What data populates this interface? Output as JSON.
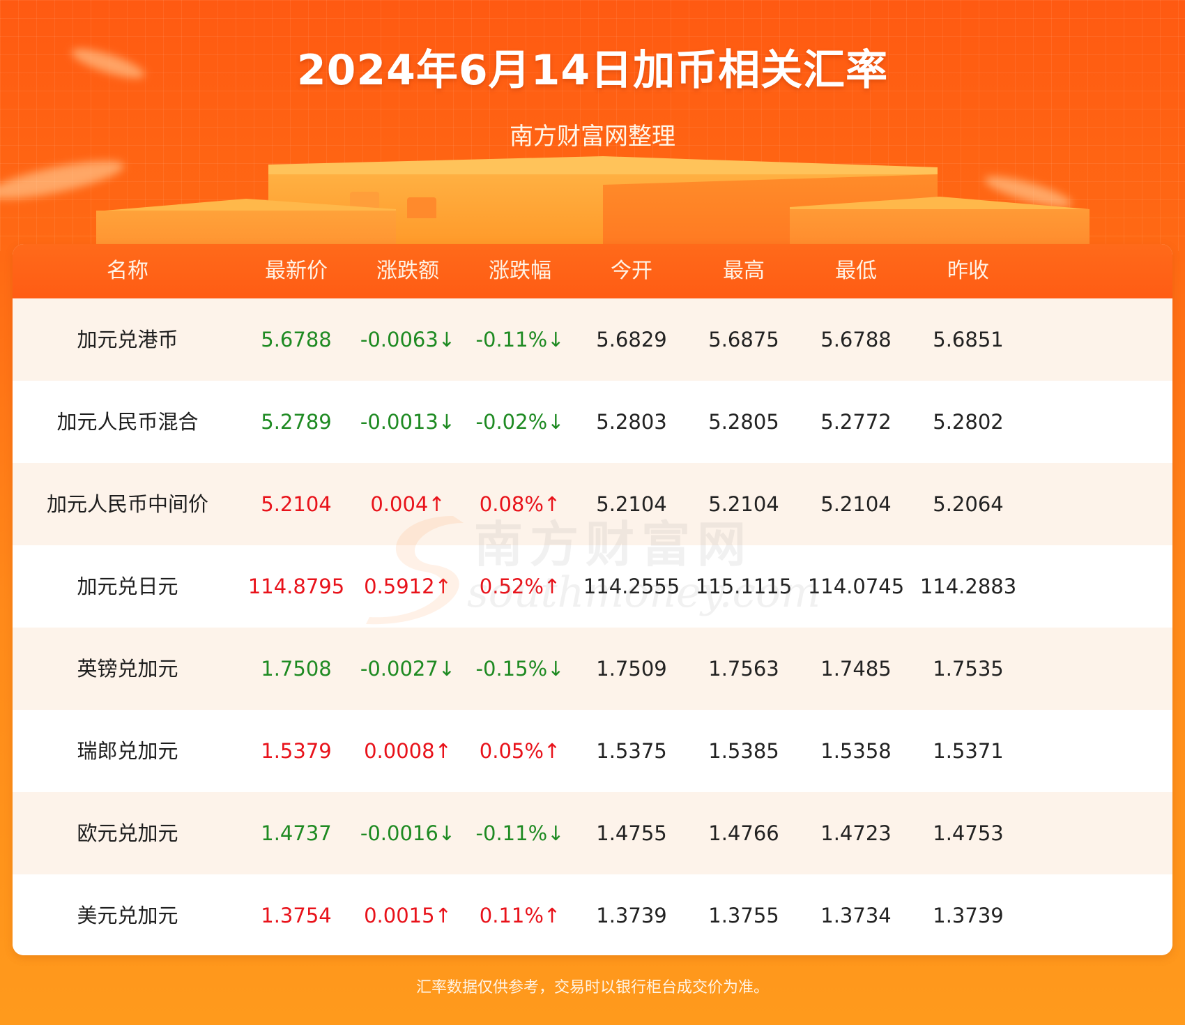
{
  "header": {
    "title": "2024年6月14日加币相关汇率",
    "subtitle": "南方财富网整理"
  },
  "table": {
    "columns": [
      "名称",
      "最新价",
      "涨跌额",
      "涨跌幅",
      "今开",
      "最高",
      "最低",
      "昨收"
    ],
    "rows": [
      {
        "name": "加元兑港币",
        "latest": "5.6788",
        "change": "-0.0063↓",
        "pct": "-0.11%↓",
        "open": "5.6829",
        "high": "5.6875",
        "low": "5.6788",
        "prev_close": "5.6851",
        "trend": "down"
      },
      {
        "name": "加元人民币混合",
        "latest": "5.2789",
        "change": "-0.0013↓",
        "pct": "-0.02%↓",
        "open": "5.2803",
        "high": "5.2805",
        "low": "5.2772",
        "prev_close": "5.2802",
        "trend": "down"
      },
      {
        "name": "加元人民币中间价",
        "latest": "5.2104",
        "change": "0.004↑",
        "pct": "0.08%↑",
        "open": "5.2104",
        "high": "5.2104",
        "low": "5.2104",
        "prev_close": "5.2064",
        "trend": "up"
      },
      {
        "name": "加元兑日元",
        "latest": "114.8795",
        "change": "0.5912↑",
        "pct": "0.52%↑",
        "open": "114.2555",
        "high": "115.1115",
        "low": "114.0745",
        "prev_close": "114.2883",
        "trend": "up"
      },
      {
        "name": "英镑兑加元",
        "latest": "1.7508",
        "change": "-0.0027↓",
        "pct": "-0.15%↓",
        "open": "1.7509",
        "high": "1.7563",
        "low": "1.7485",
        "prev_close": "1.7535",
        "trend": "down"
      },
      {
        "name": "瑞郎兑加元",
        "latest": "1.5379",
        "change": "0.0008↑",
        "pct": "0.05%↑",
        "open": "1.5375",
        "high": "1.5385",
        "low": "1.5358",
        "prev_close": "1.5371",
        "trend": "up"
      },
      {
        "name": "欧元兑加元",
        "latest": "1.4737",
        "change": "-0.0016↓",
        "pct": "-0.11%↓",
        "open": "1.4755",
        "high": "1.4766",
        "low": "1.4723",
        "prev_close": "1.4753",
        "trend": "down"
      },
      {
        "name": "美元兑加元",
        "latest": "1.3754",
        "change": "0.0015↑",
        "pct": "0.11%↑",
        "open": "1.3739",
        "high": "1.3755",
        "low": "1.3734",
        "prev_close": "1.3739",
        "trend": "up"
      }
    ]
  },
  "watermark": {
    "cn": "南方财富网",
    "en": "southmoney.com"
  },
  "footer": {
    "note": "汇率数据仅供参考，交易时以银行柜台成交价为准。"
  },
  "colors": {
    "up": "#e8121a",
    "down": "#1e8a22",
    "header_orange": "#ff5c14"
  }
}
